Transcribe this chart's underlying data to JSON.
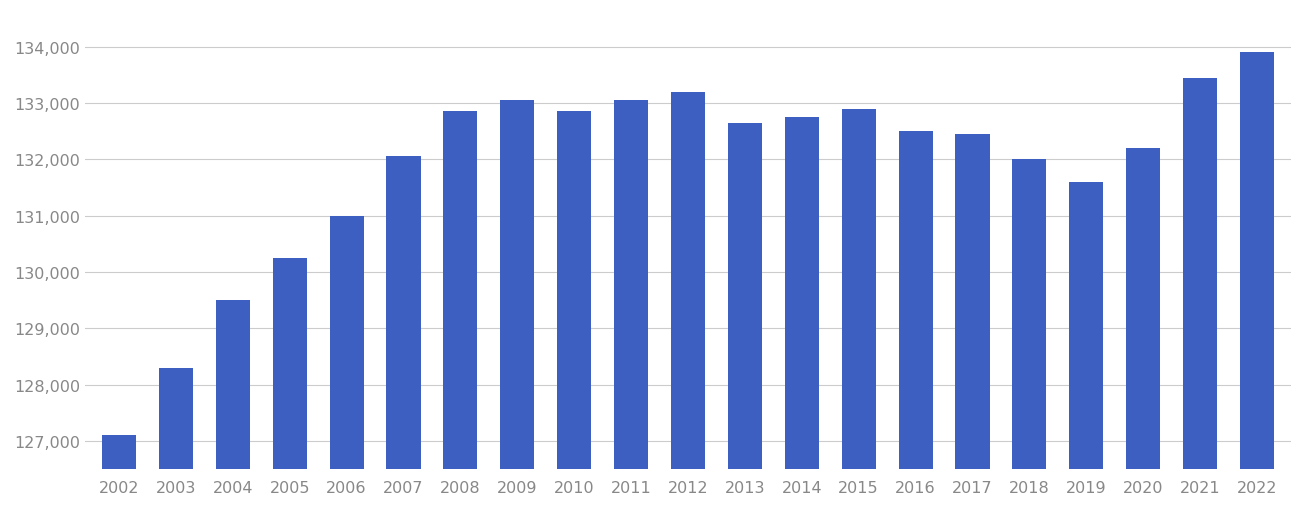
{
  "years": [
    2002,
    2003,
    2004,
    2005,
    2006,
    2007,
    2008,
    2009,
    2010,
    2011,
    2012,
    2013,
    2014,
    2015,
    2016,
    2017,
    2018,
    2019,
    2020,
    2021,
    2022
  ],
  "values": [
    127100,
    128300,
    129500,
    130250,
    131000,
    132050,
    132850,
    133050,
    132850,
    133050,
    133200,
    132650,
    132750,
    132900,
    132500,
    132450,
    132000,
    131600,
    132200,
    133450,
    133900
  ],
  "bar_color": "#3d5fc1",
  "background_color": "#ffffff",
  "grid_color": "#cccccc",
  "ylim_min": 126500,
  "ylim_max": 134600,
  "yticks": [
    127000,
    128000,
    129000,
    130000,
    131000,
    132000,
    133000,
    134000
  ],
  "tick_label_color": "#888888",
  "tick_fontsize": 11.5,
  "bar_width": 0.6
}
